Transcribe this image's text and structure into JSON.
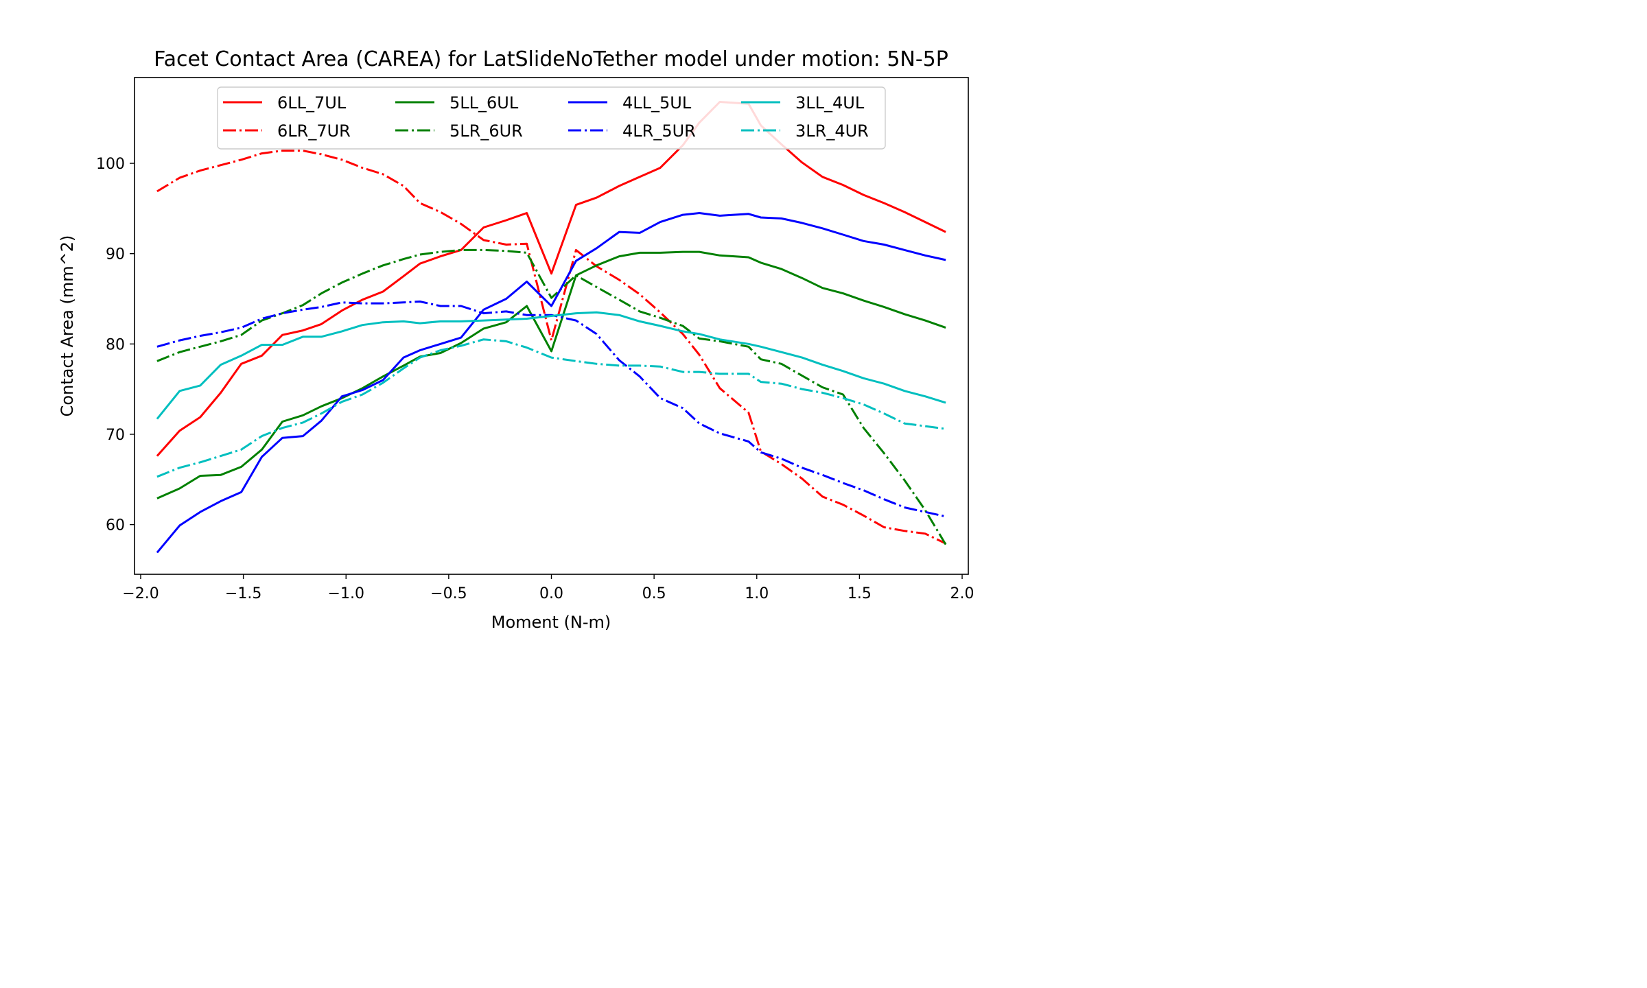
{
  "chart_data": {
    "type": "line",
    "title": "Facet Contact Area (CAREA) for LatSlideNoTether model under motion: 5N-5P",
    "xlabel": "Moment (N-m)",
    "ylabel": "Contact Area (mm^2)",
    "xlim": [
      -2.03,
      2.03
    ],
    "ylim": [
      54.5,
      109.5
    ],
    "x_ticks": [
      -2.0,
      -1.5,
      -1.0,
      -0.5,
      0.0,
      0.5,
      1.0,
      1.5,
      2.0
    ],
    "x_tick_labels": [
      "−2.0",
      "−1.5",
      "−1.0",
      "−0.5",
      "0.0",
      "0.5",
      "1.0",
      "1.5",
      "2.0"
    ],
    "y_ticks": [
      60,
      70,
      80,
      90,
      100
    ],
    "y_tick_labels": [
      "60",
      "70",
      "80",
      "90",
      "100"
    ],
    "grid": false,
    "legend_position": "top-center",
    "legend_columns": 4,
    "x": [
      -1.92,
      -1.81,
      -1.71,
      -1.61,
      -1.51,
      -1.41,
      -1.31,
      -1.21,
      -1.12,
      -1.02,
      -0.92,
      -0.82,
      -0.72,
      -0.64,
      -0.54,
      -0.44,
      -0.33,
      -0.22,
      -0.12,
      0.0,
      0.12,
      0.22,
      0.33,
      0.43,
      0.53,
      0.64,
      0.72,
      0.82,
      0.96,
      1.02,
      1.12,
      1.22,
      1.32,
      1.42,
      1.52,
      1.62,
      1.72,
      1.82,
      1.92
    ],
    "series": [
      {
        "name": "6LL_7UL",
        "color": "#ff0000",
        "style": "solid",
        "values": [
          67.6,
          70.4,
          71.9,
          74.6,
          77.8,
          78.7,
          81.0,
          81.5,
          82.2,
          83.7,
          84.9,
          85.8,
          87.5,
          88.9,
          89.7,
          90.4,
          92.9,
          93.7,
          94.5,
          87.8,
          95.4,
          96.2,
          97.5,
          98.5,
          99.5,
          102.0,
          104.5,
          106.8,
          106.6,
          104.2,
          102.1,
          100.1,
          98.5,
          97.6,
          96.5,
          95.6,
          94.6,
          93.5,
          92.4
        ]
      },
      {
        "name": "6LR_7UR",
        "color": "#ff0000",
        "style": "dashdot",
        "values": [
          96.9,
          98.4,
          99.2,
          99.8,
          100.4,
          101.1,
          101.4,
          101.4,
          101.0,
          100.4,
          99.5,
          98.8,
          97.5,
          95.6,
          94.6,
          93.3,
          91.5,
          91.0,
          91.1,
          80.4,
          90.4,
          88.6,
          87.1,
          85.5,
          83.5,
          81.1,
          78.8,
          75.1,
          72.4,
          68.1,
          66.7,
          65.1,
          63.1,
          62.2,
          61.0,
          59.7,
          59.3,
          59.0,
          57.9
        ]
      },
      {
        "name": "5LL_6UL",
        "color": "#008000",
        "style": "solid",
        "values": [
          62.9,
          64.0,
          65.4,
          65.5,
          66.4,
          68.3,
          71.4,
          72.1,
          73.1,
          74.0,
          75.1,
          76.4,
          77.6,
          78.6,
          79.0,
          80.1,
          81.7,
          82.4,
          84.2,
          79.2,
          87.6,
          88.7,
          89.7,
          90.1,
          90.1,
          90.2,
          90.2,
          89.8,
          89.6,
          89.0,
          88.3,
          87.3,
          86.2,
          85.6,
          84.8,
          84.1,
          83.3,
          82.6,
          81.8
        ]
      },
      {
        "name": "5LR_6UR",
        "color": "#008000",
        "style": "dashdot",
        "values": [
          78.1,
          79.1,
          79.7,
          80.3,
          81.0,
          82.6,
          83.4,
          84.3,
          85.6,
          86.8,
          87.8,
          88.7,
          89.4,
          89.9,
          90.2,
          90.4,
          90.4,
          90.3,
          90.1,
          85.1,
          87.6,
          86.3,
          84.9,
          83.6,
          82.9,
          82.0,
          80.6,
          80.3,
          79.7,
          78.3,
          77.8,
          76.5,
          75.2,
          74.4,
          70.7,
          67.9,
          64.9,
          61.6,
          57.8
        ]
      },
      {
        "name": "4LL_5UL",
        "color": "#0000ff",
        "style": "solid",
        "values": [
          56.9,
          59.9,
          61.4,
          62.6,
          63.6,
          67.5,
          69.6,
          69.8,
          71.5,
          74.2,
          74.9,
          76.0,
          78.5,
          79.3,
          80.0,
          80.7,
          83.8,
          85.0,
          86.9,
          84.2,
          89.2,
          90.6,
          92.4,
          92.3,
          93.5,
          94.3,
          94.5,
          94.2,
          94.4,
          94.0,
          93.9,
          93.4,
          92.8,
          92.1,
          91.4,
          91.0,
          90.4,
          89.8,
          89.3
        ]
      },
      {
        "name": "4LR_5UR",
        "color": "#0000ff",
        "style": "dashdot",
        "values": [
          79.7,
          80.4,
          80.9,
          81.3,
          81.8,
          82.8,
          83.4,
          83.8,
          84.1,
          84.6,
          84.5,
          84.5,
          84.6,
          84.7,
          84.2,
          84.2,
          83.4,
          83.6,
          83.2,
          83.2,
          82.6,
          81.1,
          78.2,
          76.4,
          74.0,
          72.9,
          71.2,
          70.1,
          69.2,
          68.0,
          67.3,
          66.3,
          65.5,
          64.6,
          63.8,
          62.8,
          61.9,
          61.4,
          60.9
        ]
      },
      {
        "name": "3LL_4UL",
        "color": "#00bfbf",
        "style": "solid",
        "values": [
          71.7,
          74.8,
          75.4,
          77.7,
          78.7,
          79.9,
          79.9,
          80.8,
          80.8,
          81.4,
          82.1,
          82.4,
          82.5,
          82.3,
          82.5,
          82.5,
          82.6,
          82.7,
          82.8,
          83.1,
          83.4,
          83.5,
          83.2,
          82.5,
          82.0,
          81.4,
          81.1,
          80.5,
          80.0,
          79.7,
          79.1,
          78.5,
          77.7,
          77.0,
          76.2,
          75.6,
          74.8,
          74.2,
          73.5
        ]
      },
      {
        "name": "3LR_4UR",
        "color": "#00bfbf",
        "style": "dashdot",
        "values": [
          65.3,
          66.3,
          66.9,
          67.6,
          68.3,
          69.8,
          70.7,
          71.3,
          72.3,
          73.6,
          74.4,
          75.7,
          77.3,
          78.5,
          79.3,
          79.8,
          80.5,
          80.3,
          79.6,
          78.5,
          78.1,
          77.8,
          77.6,
          77.6,
          77.5,
          76.9,
          76.9,
          76.7,
          76.7,
          75.8,
          75.6,
          75.0,
          74.6,
          74.0,
          73.3,
          72.3,
          71.2,
          70.9,
          70.6
        ]
      }
    ]
  }
}
